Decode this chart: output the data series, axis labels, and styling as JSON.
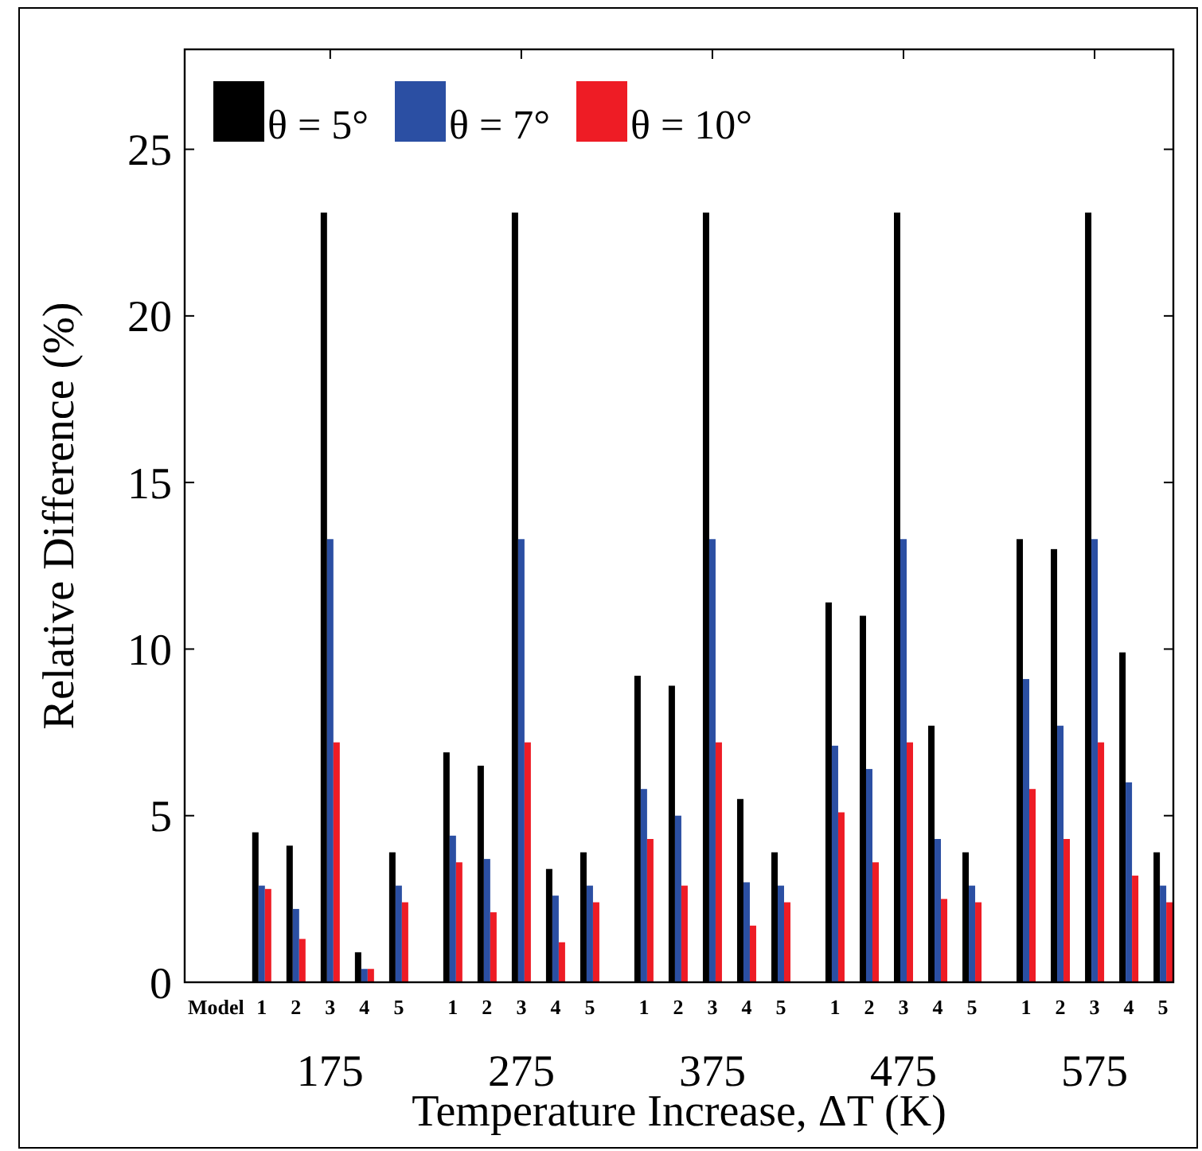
{
  "chart_data": {
    "type": "bar",
    "xlabel": "Temperature Increase, ΔT (K)",
    "ylabel": "Relative Difference (%)",
    "categories": [
      "1",
      "2",
      "3",
      "4",
      "5",
      "1",
      "2",
      "3",
      "4",
      "5",
      "1",
      "2",
      "3",
      "4",
      "5",
      "1",
      "2",
      "3",
      "4",
      "5",
      "1",
      "2",
      "3",
      "4",
      "5"
    ],
    "annotations": [
      "Model",
      "175",
      "275",
      "375",
      "475",
      "575"
    ],
    "series": [
      {
        "name": "θ = 5°",
        "color": "#000000",
        "values": [
          4.5,
          4.1,
          23.1,
          0.9,
          3.9,
          6.9,
          6.5,
          23.1,
          3.4,
          3.9,
          9.2,
          8.9,
          23.1,
          5.5,
          3.9,
          11.4,
          11.0,
          23.1,
          7.7,
          3.9,
          13.3,
          13.0,
          23.1,
          9.9,
          3.9
        ]
      },
      {
        "name": "θ = 7°",
        "color": "#2b4fa3",
        "values": [
          2.9,
          2.2,
          13.3,
          0.4,
          2.9,
          4.4,
          3.7,
          13.3,
          2.6,
          2.9,
          5.8,
          5.0,
          13.3,
          3.0,
          2.9,
          7.1,
          6.4,
          13.3,
          4.3,
          2.9,
          9.1,
          7.7,
          13.3,
          6.0,
          2.9
        ]
      },
      {
        "name": "θ = 10°",
        "color": "#ee1c25",
        "values": [
          2.8,
          1.3,
          7.2,
          0.4,
          2.4,
          3.6,
          2.1,
          7.2,
          1.2,
          2.4,
          4.3,
          2.9,
          7.2,
          1.7,
          2.4,
          5.1,
          3.6,
          7.2,
          2.5,
          2.4,
          5.8,
          4.3,
          7.2,
          3.2,
          2.4
        ]
      }
    ],
    "ylim": [
      0,
      28
    ],
    "yticks": [
      0,
      5,
      10,
      15,
      20,
      25
    ],
    "grid": false,
    "legend": "top left"
  }
}
